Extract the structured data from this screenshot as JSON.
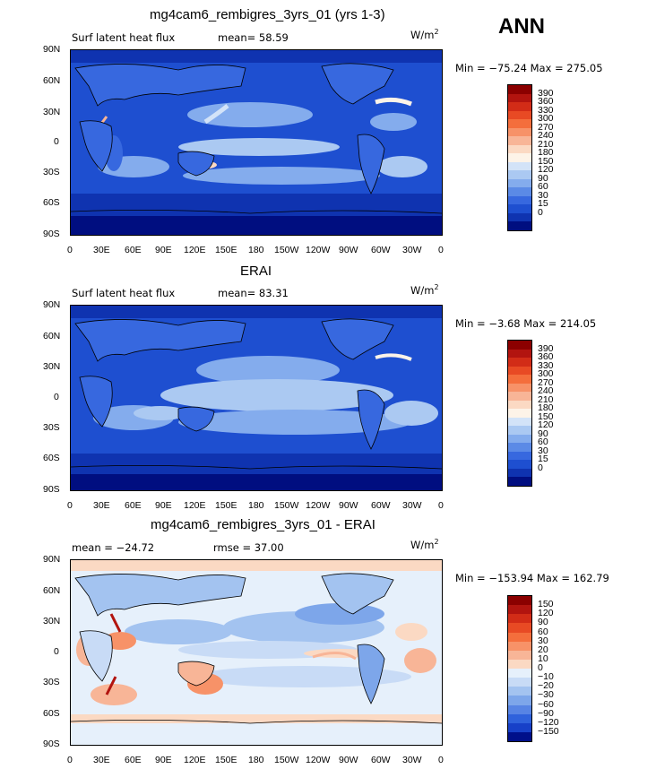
{
  "season": "ANN",
  "panels": [
    {
      "title": "mg4cam6_rembigres_3yrs_01 (yrs 1-3)",
      "left_label": "Surf latent heat flux",
      "middle_label": "mean=  58.59",
      "units": "W/m",
      "units_sup": "2",
      "minmax": "Min = −75.24 Max = 275.05",
      "colorbar_labels": [
        "390",
        "360",
        "330",
        "300",
        "270",
        "240",
        "210",
        "180",
        "150",
        "120",
        "90",
        "60",
        "30",
        "15",
        "0"
      ],
      "colorbar_colors": [
        "#8b0000",
        "#b2140f",
        "#d22c17",
        "#e84a24",
        "#f46e3c",
        "#f79268",
        "#f8b597",
        "#fbd9c3",
        "#fdf3e8",
        "#d3e3f8",
        "#abc9f2",
        "#84aced",
        "#5b8ae6",
        "#3768df",
        "#1e4fd0",
        "#0f33b0",
        "#000e80"
      ]
    },
    {
      "title": "ERAI",
      "left_label": "Surf latent heat flux",
      "middle_label": "mean=  83.31",
      "units": "W/m",
      "units_sup": "2",
      "minmax": "Min =  −3.68 Max = 214.05",
      "colorbar_labels": [
        "390",
        "360",
        "330",
        "300",
        "270",
        "240",
        "210",
        "180",
        "150",
        "120",
        "90",
        "60",
        "30",
        "15",
        "0"
      ],
      "colorbar_colors": [
        "#8b0000",
        "#b2140f",
        "#d22c17",
        "#e84a24",
        "#f46e3c",
        "#f79268",
        "#f8b597",
        "#fbd9c3",
        "#fdf3e8",
        "#d3e3f8",
        "#abc9f2",
        "#84aced",
        "#5b8ae6",
        "#3768df",
        "#1e4fd0",
        "#0f33b0",
        "#000e80"
      ]
    },
    {
      "title": "mg4cam6_rembigres_3yrs_01 - ERAI",
      "left_label": "mean = −24.72",
      "middle_label": "rmse =  37.00",
      "units": "W/m",
      "units_sup": "2",
      "minmax": "Min = −153.94 Max = 162.79",
      "colorbar_labels": [
        "150",
        "120",
        "90",
        "60",
        "30",
        "20",
        "10",
        "0",
        "−10",
        "−20",
        "−30",
        "−60",
        "−90",
        "−120",
        "−150"
      ],
      "colorbar_colors": [
        "#8b0000",
        "#b2140f",
        "#d22c17",
        "#e84a24",
        "#f46e3c",
        "#f79268",
        "#f8b597",
        "#fbd9c3",
        "#e6f0fb",
        "#c8dbf6",
        "#a3c3f0",
        "#7da6ea",
        "#5784e4",
        "#2f62dc",
        "#1740c8",
        "#00108a"
      ]
    }
  ],
  "lat_labels": [
    "90N",
    "60N",
    "30N",
    "0",
    "30S",
    "60S",
    "90S"
  ],
  "lon_labels": [
    "0",
    "30E",
    "60E",
    "90E",
    "120E",
    "150E",
    "180",
    "150W",
    "120W",
    "90W",
    "60W",
    "30W",
    "0"
  ]
}
